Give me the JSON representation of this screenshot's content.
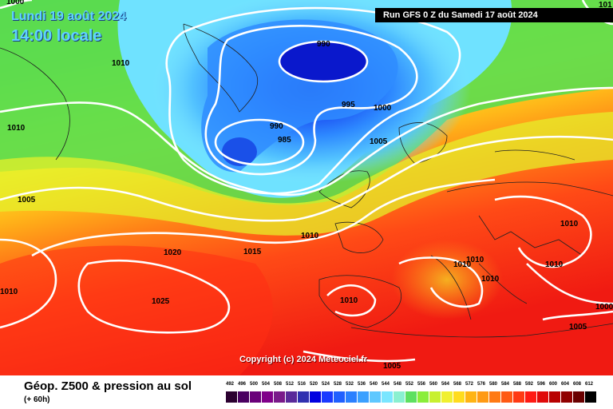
{
  "header": {
    "date": "Lundi 19 août 2024",
    "time": "14:00 locale",
    "run": "Run GFS 0 Z du Samedi 17 août 2024",
    "top_left_label": "1000",
    "top_right_label": "101"
  },
  "footer": {
    "product": "Géop. Z500 & pression au sol",
    "forecast_hour": "(+ 60h)",
    "copyright": "Copyright (c) 2024 Meteociel.fr"
  },
  "isobar_labels": [
    "990",
    "995",
    "1000",
    "990",
    "985",
    "1005",
    "1010",
    "1010",
    "1005",
    "1010",
    "1015",
    "1020",
    "1025",
    "1010",
    "1010",
    "1010",
    "1010",
    "1010",
    "1010",
    "1005",
    "1005",
    "1000",
    "1010"
  ],
  "scale": {
    "labels": [
      "492",
      "496",
      "500",
      "504",
      "508",
      "512",
      "516",
      "520",
      "524",
      "528",
      "532",
      "536",
      "540",
      "544",
      "548",
      "552",
      "556",
      "560",
      "564",
      "568",
      "572",
      "576",
      "580",
      "584",
      "588",
      "592",
      "596",
      "600",
      "604",
      "608",
      "612"
    ],
    "colors": [
      "#2b0030",
      "#4a0060",
      "#6a007a",
      "#80008a",
      "#7a1a8a",
      "#5a2a9a",
      "#3030b0",
      "#0000e0",
      "#1a3aff",
      "#2060ff",
      "#2a80ff",
      "#3aa0ff",
      "#5ec8ff",
      "#7ae6ff",
      "#8af0d0",
      "#5ee060",
      "#8aee3a",
      "#c8f030",
      "#f0f030",
      "#ffdc1e",
      "#ffb414",
      "#ff9a14",
      "#ff7a14",
      "#ff5a14",
      "#ff3a14",
      "#ff1a14",
      "#e00a0a",
      "#b80000",
      "#900000",
      "#6a0000",
      "#000000"
    ]
  }
}
